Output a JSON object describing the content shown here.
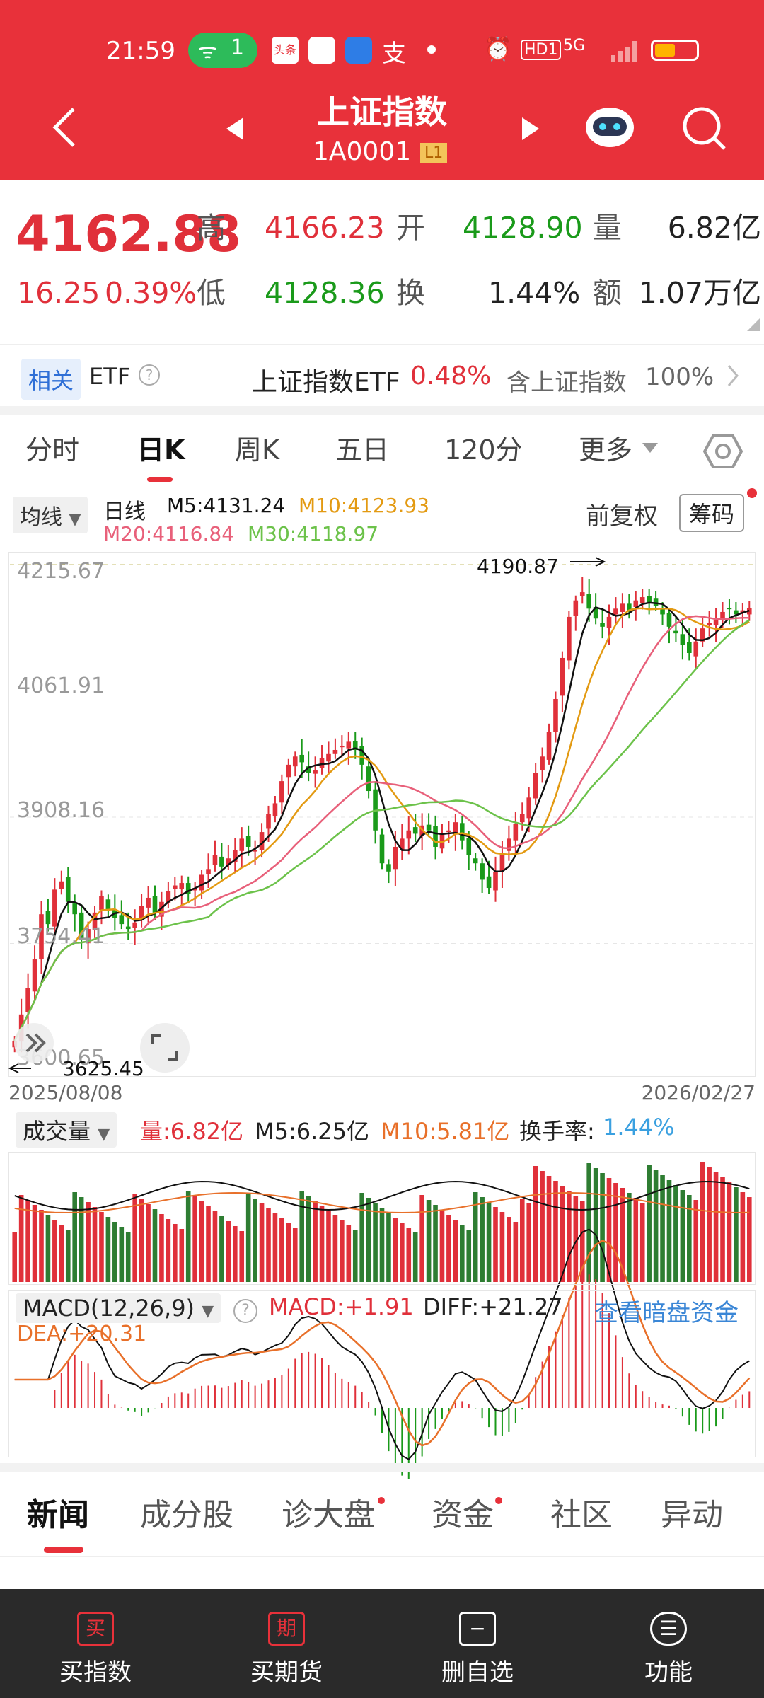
{
  "status": {
    "time": "21:59",
    "wifi_count": "1",
    "app_icons": [
      "头条"
    ],
    "hd": "HD1",
    "net": "5G"
  },
  "header": {
    "title": "上证指数",
    "code": "1A0001",
    "level": "L1"
  },
  "quote": {
    "price": "4162.88",
    "change": "16.25",
    "pct": "0.39%",
    "high_label": "高",
    "high": "4166.23",
    "open_label": "开",
    "open": "4128.90",
    "vol_label": "量",
    "vol": "6.82亿",
    "low_label": "低",
    "low": "4128.36",
    "turn_label": "换",
    "turn": "1.44%",
    "amt_label": "额",
    "amt": "1.07万亿"
  },
  "etf": {
    "tag": "相关",
    "label": "ETF",
    "name": "上证指数ETF",
    "pct": "0.48%",
    "contains": "含上证指数",
    "ratio": "100%"
  },
  "tabs": [
    "分时",
    "日K",
    "周K",
    "五日",
    "120分",
    "更多"
  ],
  "kline": {
    "ma_select": "均线",
    "period": "日线",
    "m5": "M5:4131.24",
    "m10": "M10:4123.93",
    "m20": "M20:4116.84",
    "m30": "M30:4118.97",
    "fq": "前复权",
    "chip": "筹码",
    "yticks": [
      "4215.67",
      "4061.91",
      "3908.16",
      "3754.41",
      "3600.65"
    ],
    "high_mark": "4190.87",
    "low_mark": "3625.45",
    "date_start": "2025/08/08",
    "date_end": "2026/02/27"
  },
  "volume": {
    "select": "成交量",
    "vol": "量:6.82亿",
    "m5": "M5:6.25亿",
    "m10": "M10:5.81亿",
    "turnover_label": "换手率:",
    "turnover": "1.44%"
  },
  "macd": {
    "select": "MACD(12,26,9)",
    "macd": "MACD:+1.91",
    "diff": "DIFF:+21.27",
    "link": "查看暗盘资金",
    "dea": "DEA:+20.31"
  },
  "bottom_tabs": [
    "新闻",
    "成分股",
    "诊大盘",
    "资金",
    "社区",
    "异动"
  ],
  "nav": [
    {
      "icon": "买",
      "label": "买指数"
    },
    {
      "icon": "期",
      "label": "买期货"
    },
    {
      "icon": "−",
      "label": "删自选"
    },
    {
      "icon": "☰",
      "label": "功能"
    }
  ],
  "colors": {
    "brand": "#e8313a",
    "up": "#e0303a",
    "down": "#1a9a1a",
    "m5": "#111111",
    "m10": "#e39a12",
    "m20": "#e8607a",
    "m30": "#6cc24a"
  },
  "chart_data": {
    "type": "candlestick",
    "closes": [
      3636,
      3668,
      3700,
      3735,
      3790,
      3778,
      3820,
      3830,
      3805,
      3790,
      3760,
      3772,
      3792,
      3812,
      3795,
      3785,
      3778,
      3772,
      3780,
      3800,
      3810,
      3792,
      3805,
      3818,
      3825,
      3828,
      3815,
      3822,
      3838,
      3845,
      3862,
      3848,
      3858,
      3868,
      3882,
      3872,
      3868,
      3890,
      3912,
      3925,
      3952,
      3972,
      3982,
      3975,
      3962,
      3965,
      3980,
      3985,
      3990,
      3995,
      4000,
      3990,
      3972,
      3940,
      3892,
      3852,
      3842,
      3872,
      3882,
      3892,
      3888,
      3898,
      3892,
      3872,
      3888,
      3892,
      3902,
      3880,
      3862,
      3852,
      3832,
      3822,
      3842,
      3862,
      3882,
      3900,
      3912,
      3932,
      3962,
      3982,
      4012,
      4052,
      4102,
      4152,
      4172,
      4182,
      4162,
      4150,
      4140,
      4152,
      4162,
      4168,
      4160,
      4172,
      4176,
      4170,
      4165,
      4155,
      4140,
      4132,
      4118,
      4108,
      4122,
      4138,
      4145,
      4150,
      4158,
      4162,
      4155,
      4160,
      4163
    ]
  }
}
